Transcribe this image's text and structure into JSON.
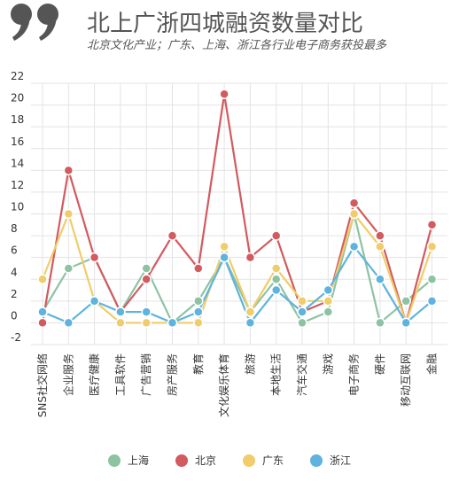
{
  "title": "北上广浙四城融资数量对比",
  "subtitle": "北京文化产业；广东、上海、浙江各行业电子商务获投最多",
  "chart_data": {
    "type": "line",
    "categories": [
      "SNS社交网络",
      "企业服务",
      "医疗健康",
      "工具软件",
      "广告营销",
      "房产服务",
      "教育",
      "文化娱乐体育",
      "旅游",
      "本地生活",
      "汽车交通",
      "游戏",
      "电子商务",
      "硬件",
      "移动互联网",
      "金融"
    ],
    "series": [
      {
        "name": "上海",
        "color": "#8dc3a3",
        "values": [
          1,
          5,
          6,
          1,
          5,
          0,
          2,
          6,
          1,
          4,
          0,
          1,
          10,
          0,
          2,
          4
        ]
      },
      {
        "name": "北京",
        "color": "#d35a5f",
        "values": [
          0,
          14,
          6,
          1,
          4,
          8,
          5,
          21,
          6,
          8,
          1,
          2,
          11,
          8,
          0,
          9
        ]
      },
      {
        "name": "广东",
        "color": "#f0cc6b",
        "values": [
          4,
          10,
          2,
          0,
          0,
          0,
          0,
          7,
          1,
          5,
          2,
          2,
          10,
          7,
          0,
          7
        ]
      },
      {
        "name": "浙江",
        "color": "#5eb3df",
        "values": [
          1,
          0,
          2,
          1,
          1,
          0,
          1,
          6,
          0,
          3,
          1,
          3,
          7,
          4,
          0,
          2
        ]
      }
    ],
    "yticks": [
      -2,
      0,
      2,
      4,
      6,
      8,
      10,
      12,
      14,
      16,
      18,
      20,
      22
    ],
    "ylim": [
      -2,
      22
    ],
    "grid": true,
    "legend": "bottom-center"
  }
}
